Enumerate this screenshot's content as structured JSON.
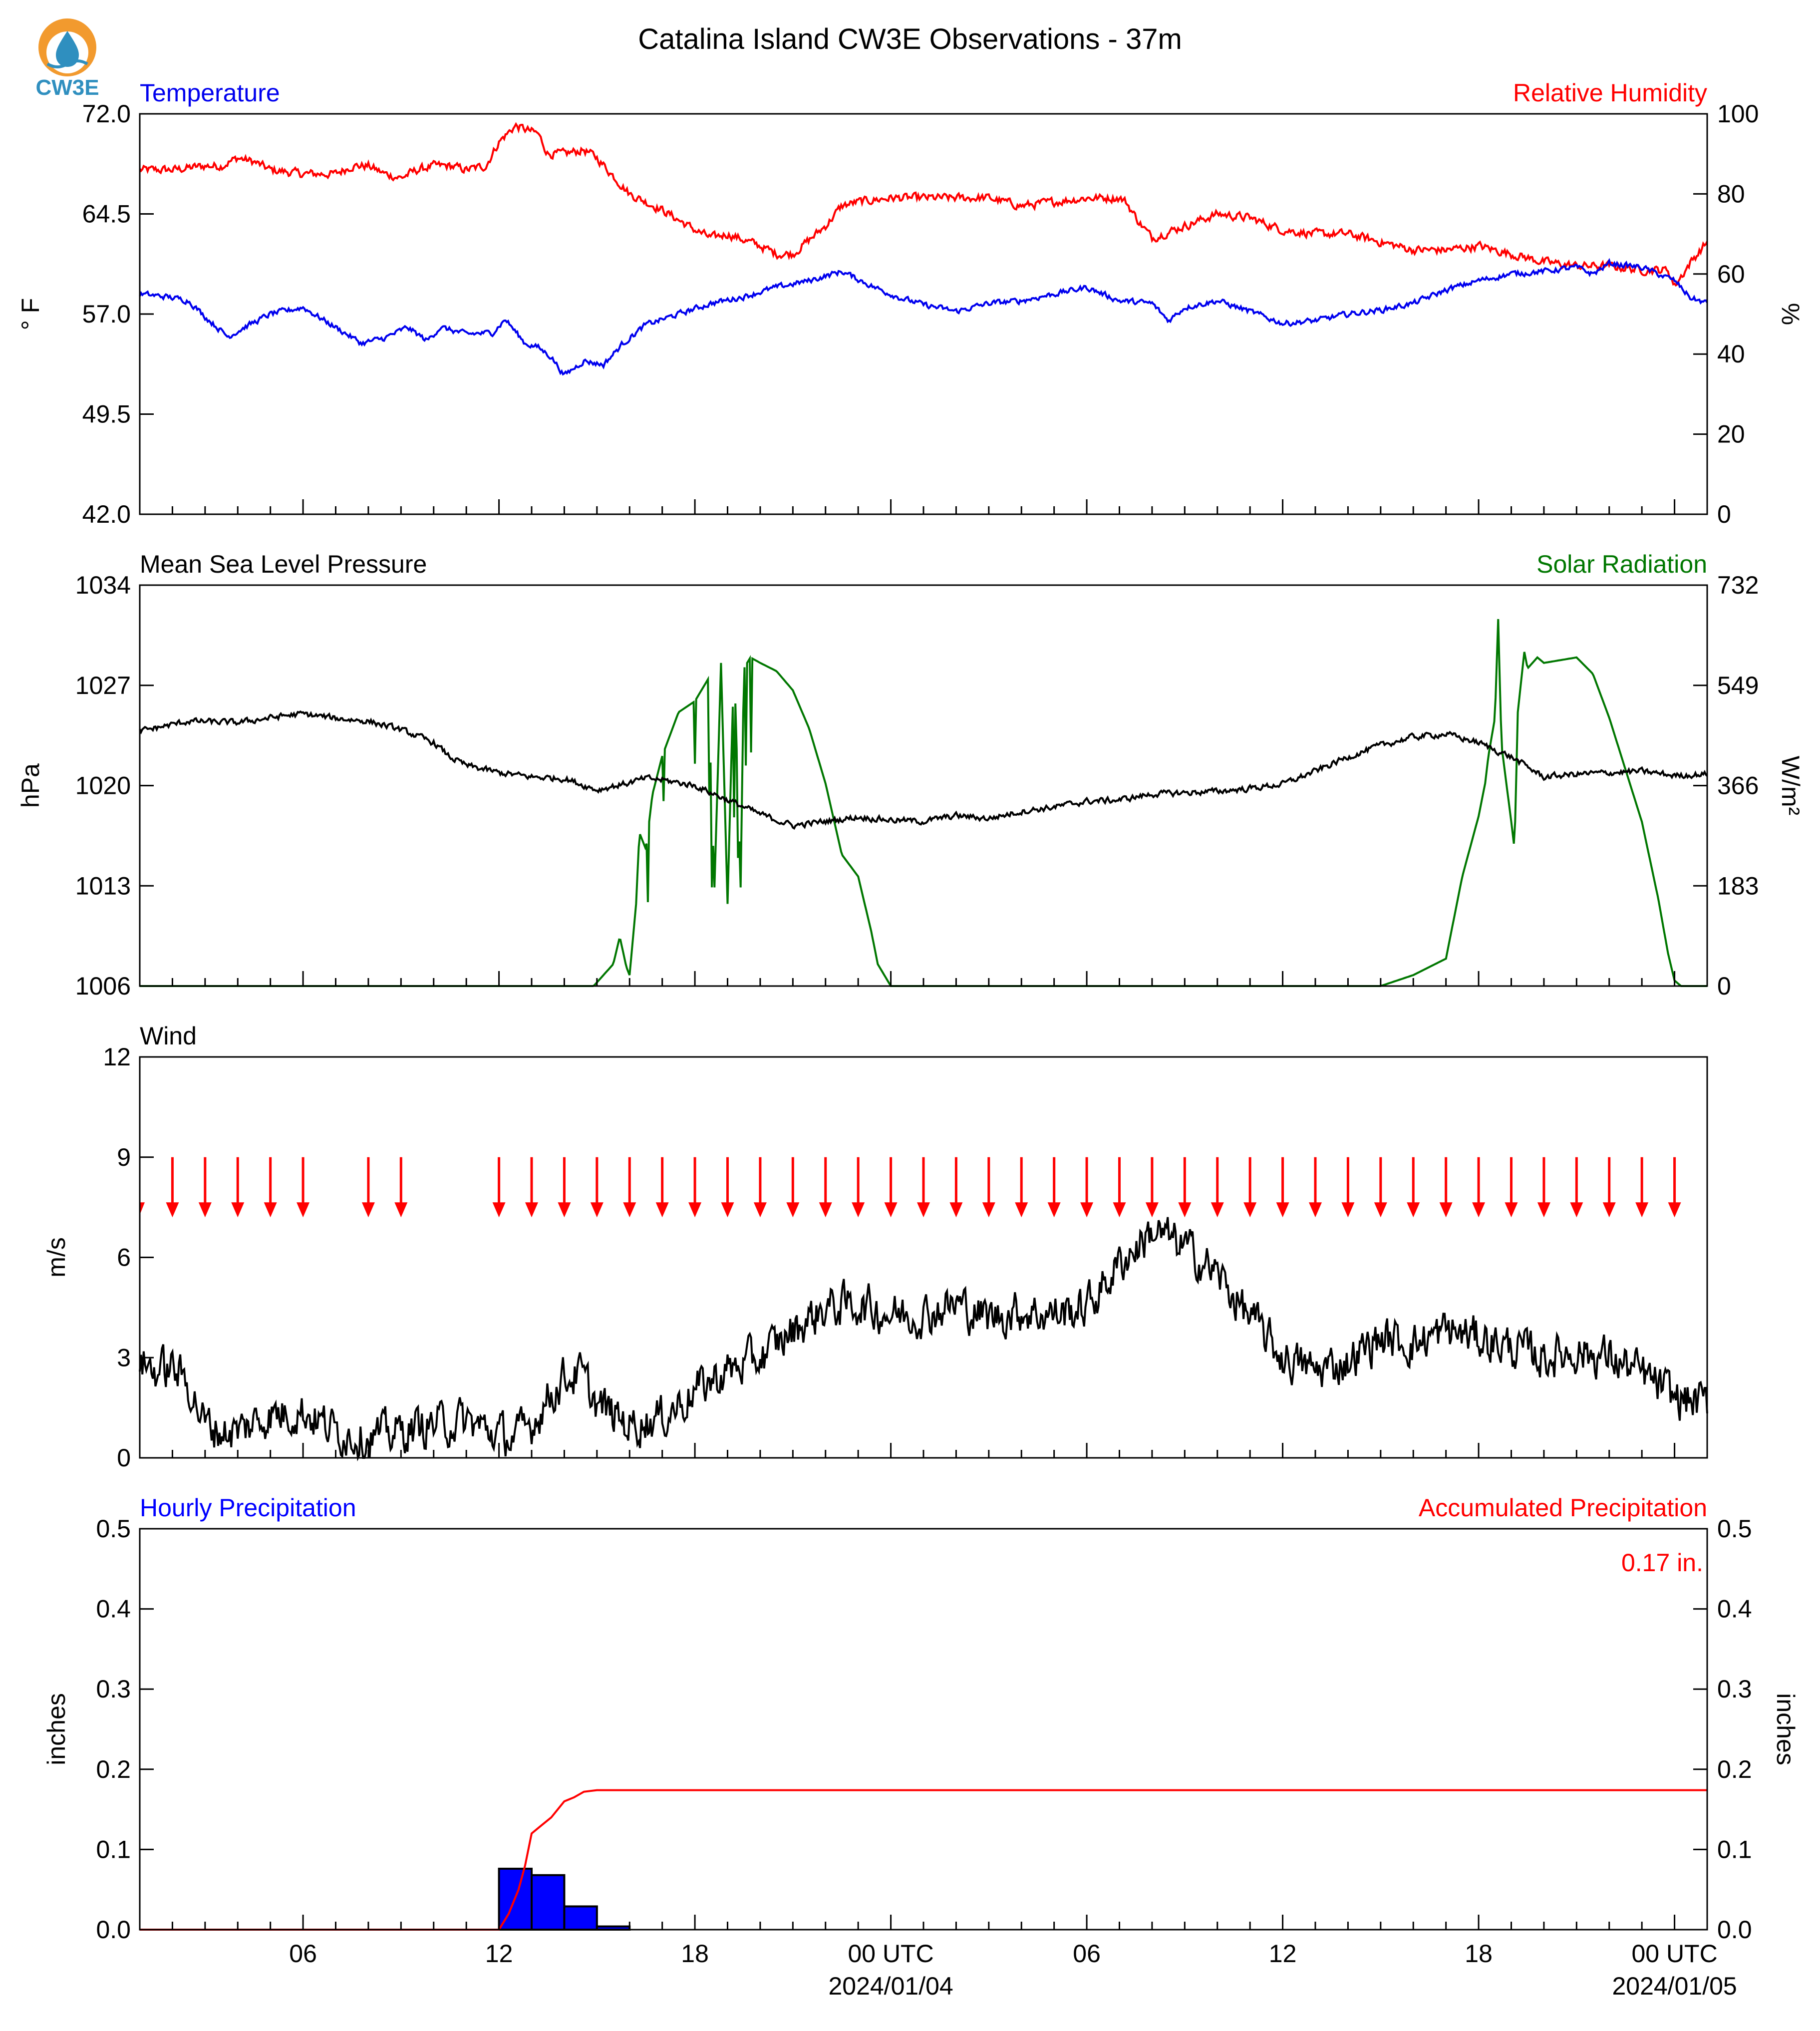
{
  "page": {
    "title": "Catalina Island CW3E Observations - 37m",
    "logo_text": "CW3E"
  },
  "colors": {
    "temperature": "#0000ee",
    "relative_humidity": "#ff0000",
    "pressure": "#000000",
    "solar": "#007700",
    "wind": "#000000",
    "wind_arrows": "#ff0000",
    "hourly_precip": "#0000ff",
    "accum_precip": "#ff0000",
    "logo_orange": "#f29a2e",
    "logo_blue": "#2f8fbf"
  },
  "x_axis": {
    "hours_range": [
      -11,
      37
    ],
    "tick_hours": [
      -6,
      0,
      6,
      12,
      18,
      24,
      30,
      36
    ],
    "tick_labels": [
      "06",
      "12",
      "18",
      "00 UTC",
      "06",
      "12",
      "18",
      "00 UTC"
    ],
    "date_labels": [
      {
        "hour": 12,
        "text": "2024/01/04"
      },
      {
        "hour": 36,
        "text": "2024/01/05"
      }
    ]
  },
  "chart_data": [
    {
      "type": "line",
      "id": "temp_rh",
      "title_left": "Temperature",
      "title_right": "Relative Humidity",
      "ylabel": "° F",
      "ylabel_right": "%",
      "ylim": [
        42.0,
        72.0
      ],
      "ylim_right": [
        0,
        100
      ],
      "yticks": [
        "42.0",
        "49.5",
        "57.0",
        "64.5",
        "72.0"
      ],
      "yticks_right": [
        "0",
        "20",
        "40",
        "60",
        "80",
        "100"
      ],
      "series": [
        {
          "name": "Temperature",
          "axis": "left",
          "x": [
            -11,
            -10.2,
            -9.5,
            -9.0,
            -8.3,
            -7.8,
            -7.0,
            -6.0,
            -5.0,
            -4.2,
            -3.5,
            -2.8,
            -2.2,
            -1.8,
            -1.0,
            -0.2,
            0.2,
            0.8,
            1.2,
            1.6,
            2.0,
            2.6,
            3.2,
            3.8,
            4.5,
            5.5,
            6.5,
            7.5,
            8.5,
            9.5,
            10.5,
            11.5,
            12.3,
            13.0,
            14.0,
            15.0,
            16.0,
            17.0,
            18.0,
            19.0,
            20.0,
            20.5,
            21.0,
            22.0,
            23.0,
            24.0,
            25.0,
            26.0,
            27.0,
            28.0,
            29.0,
            30.0,
            31.0,
            32.0,
            33.0,
            33.5,
            34.0,
            35.0,
            36.0,
            36.5,
            37.0
          ],
          "y": [
            58.5,
            58.3,
            58.0,
            56.8,
            55.3,
            56.0,
            57.0,
            57.5,
            56.0,
            54.8,
            55.2,
            56.0,
            55.0,
            56.0,
            55.5,
            55.6,
            56.6,
            54.8,
            54.5,
            53.8,
            52.4,
            53.5,
            53.2,
            54.8,
            56.2,
            57.0,
            57.8,
            58.3,
            59.0,
            59.5,
            60.2,
            59.0,
            58.2,
            57.7,
            57.2,
            57.8,
            58.0,
            58.5,
            59.0,
            58.0,
            57.8,
            56.5,
            57.5,
            58.0,
            57.2,
            56.3,
            56.5,
            57.0,
            57.3,
            57.8,
            58.8,
            59.5,
            60.0,
            60.2,
            60.5,
            60.0,
            60.8,
            60.5,
            59.5,
            58.2,
            57.8
          ]
        },
        {
          "name": "Relative Humidity",
          "axis": "right",
          "x": [
            -11,
            -10.0,
            -9.0,
            -8.5,
            -8.0,
            -7.5,
            -7.0,
            -6.0,
            -5.0,
            -4.5,
            -4.0,
            -3.5,
            -3.0,
            -2.5,
            -2.0,
            -1.5,
            -1.0,
            -0.4,
            0.0,
            0.5,
            1.2,
            1.5,
            2.0,
            2.6,
            3.0,
            4.0,
            5.0,
            6.0,
            6.5,
            7.0,
            8.0,
            8.5,
            9.0,
            10.0,
            10.5,
            11.0,
            12.0,
            13.0,
            14.0,
            15.0,
            16.0,
            17.0,
            18.0,
            19.0,
            19.2,
            19.6,
            20.0,
            21.0,
            22.0,
            23.0,
            24.0,
            25.0,
            26.0,
            27.0,
            28.0,
            29.0,
            30.0,
            31.0,
            32.0,
            33.0,
            34.0,
            35.0,
            35.8,
            36.0,
            36.5,
            37.0
          ],
          "y": [
            86,
            86,
            87,
            87,
            89,
            88,
            86,
            85,
            85,
            87,
            87,
            85,
            84,
            86,
            87,
            87,
            86,
            87,
            93,
            97,
            95,
            90,
            90,
            91,
            89,
            80,
            76,
            71,
            69,
            70,
            67,
            65,
            65,
            72,
            77,
            78,
            79,
            79,
            79,
            79,
            77,
            78,
            79,
            79,
            78,
            73,
            69,
            72,
            75,
            74,
            71,
            70,
            70,
            68,
            66,
            66,
            67,
            65,
            63,
            62,
            62,
            61,
            61,
            57,
            63,
            68
          ]
        }
      ]
    },
    {
      "type": "line",
      "id": "pressure_solar",
      "title_left": "Mean Sea Level Pressure",
      "title_right": "Solar Radiation",
      "ylabel": "hPa",
      "ylabel_right": "W/m²",
      "ylim": [
        1006,
        1034
      ],
      "ylim_right": [
        0,
        732
      ],
      "yticks": [
        "1006",
        "1013",
        "1020",
        "1027",
        "1034"
      ],
      "yticks_right": [
        "0",
        "183",
        "366",
        "549",
        "732"
      ],
      "series": [
        {
          "name": "Mean Sea Level Pressure",
          "axis": "left",
          "x": [
            -11,
            -9.5,
            -8.0,
            -6.5,
            -6.0,
            -5.0,
            -4.0,
            -3.0,
            -2.0,
            -1.5,
            -1.0,
            0.0,
            1.0,
            2.0,
            2.5,
            3.0,
            4.0,
            4.5,
            5.0,
            6.0,
            7.0,
            8.0,
            9.0,
            10.0,
            11.0,
            12.0,
            13.0,
            14.0,
            15.0,
            16.0,
            17.0,
            18.0,
            19.0,
            20.0,
            21.0,
            22.0,
            23.0,
            24.0,
            25.0,
            26.0,
            27.0,
            28.0,
            29.0,
            30.0,
            31.0,
            32.0,
            33.0,
            34.0,
            35.0,
            36.0,
            37.0
          ],
          "y": [
            1023.8,
            1024.5,
            1024.4,
            1024.9,
            1025.0,
            1024.7,
            1024.5,
            1023.9,
            1023.0,
            1022.0,
            1021.4,
            1020.9,
            1020.6,
            1020.5,
            1020.1,
            1019.7,
            1020.2,
            1020.5,
            1020.4,
            1020.0,
            1019.0,
            1018.0,
            1017.2,
            1017.5,
            1017.8,
            1017.6,
            1017.5,
            1017.9,
            1017.7,
            1018.2,
            1018.5,
            1018.9,
            1019.0,
            1019.4,
            1019.5,
            1019.6,
            1019.8,
            1020.1,
            1021.0,
            1022.0,
            1022.8,
            1023.4,
            1023.6,
            1023.0,
            1022.0,
            1020.6,
            1020.8,
            1020.9,
            1021.0,
            1020.7,
            1020.8
          ],
          "noise": 0.18
        },
        {
          "name": "Solar Radiation",
          "axis": "right",
          "x": [
            -11,
            2.9,
            3.2,
            3.5,
            3.7,
            3.9,
            4.0,
            4.2,
            4.3,
            4.5,
            4.7,
            5.0,
            5.5,
            6.0,
            6.4,
            6.6,
            6.8,
            7.0,
            7.2,
            7.4,
            7.5,
            7.7,
            8.0,
            8.5,
            9.0,
            9.5,
            10.0,
            10.5,
            11.0,
            11.4,
            11.6,
            12.0,
            12.4,
            12.6,
            13.0,
            27.0,
            28.0,
            29.0,
            29.5,
            30.0,
            30.2,
            30.3,
            30.5,
            30.6,
            30.7,
            31.0,
            31.1,
            31.2,
            31.4,
            31.5,
            31.8,
            32.0,
            33.0,
            33.5,
            34.0,
            35.0,
            35.5,
            35.8,
            36.0,
            36.2,
            37.0
          ],
          "y": [
            0,
            0,
            20,
            40,
            90,
            35,
            20,
            150,
            280,
            250,
            350,
            420,
            500,
            520,
            560,
            180,
            590,
            150,
            600,
            180,
            580,
            600,
            590,
            575,
            540,
            470,
            370,
            240,
            200,
            100,
            40,
            0,
            0,
            0,
            0,
            0,
            20,
            50,
            200,
            310,
            370,
            420,
            490,
            670,
            440,
            300,
            250,
            500,
            610,
            580,
            600,
            590,
            600,
            570,
            490,
            300,
            160,
            60,
            10,
            0,
            0
          ],
          "spiky_ranges": [
            [
              3.9,
              7.8
            ]
          ]
        }
      ]
    },
    {
      "type": "line",
      "id": "wind",
      "title_left": "Wind",
      "ylabel": "m/s",
      "ylim": [
        0,
        12
      ],
      "yticks": [
        "0",
        "3",
        "6",
        "9",
        "12"
      ],
      "series": [
        {
          "name": "Wind",
          "x": [
            -11,
            -10.5,
            -10.0,
            -9.5,
            -9.0,
            -8.5,
            -8.0,
            -7.0,
            -6.0,
            -5.0,
            -4.0,
            -3.0,
            -2.5,
            -2.0,
            -1.0,
            0.0,
            0.5,
            1.0,
            1.5,
            2.0,
            2.5,
            3.0,
            4.0,
            5.0,
            6.0,
            7.0,
            8.0,
            9.0,
            10.0,
            11.0,
            12.0,
            13.0,
            14.0,
            15.0,
            16.0,
            17.0,
            18.0,
            19.0,
            20.0,
            21.0,
            22.0,
            23.0,
            24.0,
            25.0,
            26.0,
            27.0,
            28.0,
            29.0,
            30.0,
            31.0,
            32.0,
            33.0,
            34.0,
            35.0,
            36.0,
            37.0
          ],
          "y": [
            2.9,
            2.6,
            2.7,
            2.2,
            1.0,
            0.8,
            0.8,
            1.3,
            1.4,
            0.8,
            0.6,
            0.8,
            0.9,
            1.0,
            1.1,
            0.7,
            0.6,
            1.0,
            1.8,
            2.4,
            2.5,
            1.6,
            1.0,
            1.2,
            2.0,
            2.6,
            3.0,
            3.8,
            4.5,
            4.6,
            4.3,
            4.3,
            4.6,
            4.2,
            4.4,
            4.3,
            4.5,
            5.8,
            6.8,
            6.3,
            5.5,
            4.2,
            3.0,
            2.6,
            2.9,
            3.6,
            3.4,
            3.8,
            3.6,
            3.3,
            3.0,
            3.2,
            3.0,
            2.5,
            1.8,
            1.6
          ],
          "noise": 0.55
        }
      ],
      "arrows": {
        "direction": "north",
        "hours": [
          -10,
          -9,
          -8,
          -7,
          -6,
          -4,
          -3,
          0,
          1,
          2,
          3,
          4,
          5,
          6,
          7,
          8,
          9,
          10,
          11,
          12,
          13,
          14,
          15,
          16,
          17,
          18,
          19,
          20,
          21,
          22,
          23,
          24,
          25,
          26,
          27,
          28,
          29,
          30,
          31,
          32,
          33,
          34,
          35,
          36
        ],
        "edge_arrow_hour": -11
      }
    },
    {
      "type": "bar",
      "id": "precip",
      "title_left": "Hourly Precipitation",
      "title_right": "Accumulated Precipitation",
      "total_label": "0.17 in.",
      "ylabel": "inches",
      "ylabel_right": "inches",
      "ylim": [
        0.0,
        0.5
      ],
      "yticks": [
        "0.0",
        "0.1",
        "0.2",
        "0.3",
        "0.4",
        "0.5"
      ],
      "yticks_right": [
        "0.0",
        "0.1",
        "0.2",
        "0.3",
        "0.4",
        "0.5"
      ],
      "bars": {
        "name": "Hourly Precipitation",
        "start_hours": [
          0,
          1,
          2,
          3
        ],
        "values": [
          0.076,
          0.068,
          0.029,
          0.004
        ]
      },
      "accumulated": {
        "name": "Accumulated Precipitation",
        "x": [
          -11,
          0.0,
          0.3,
          0.6,
          0.8,
          1.0,
          1.3,
          1.6,
          2.0,
          2.3,
          2.6,
          3.0,
          37.0
        ],
        "y": [
          0,
          0,
          0.02,
          0.05,
          0.08,
          0.12,
          0.13,
          0.14,
          0.16,
          0.165,
          0.172,
          0.174,
          0.174
        ]
      }
    }
  ]
}
